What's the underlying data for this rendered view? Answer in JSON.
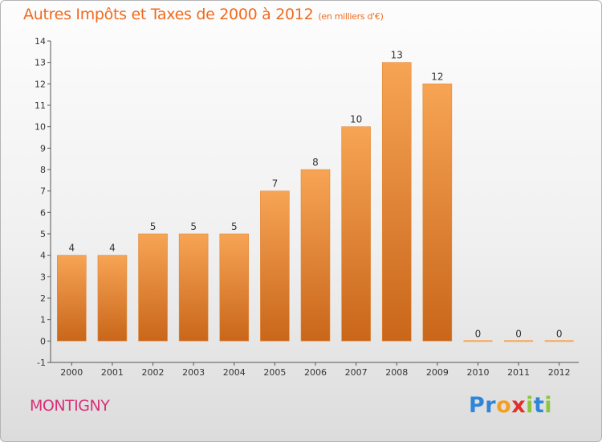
{
  "header": {
    "title": "Autres Impôts et Taxes de 2000 à 2012",
    "unit": "(en milliers d'€)"
  },
  "footer": {
    "commune": "MONTIGNY",
    "brand": "Proxiti",
    "brand_letters": [
      {
        "char": "P",
        "color": "#2f86d8"
      },
      {
        "char": "r",
        "color": "#2f86d8"
      },
      {
        "char": "o",
        "color": "#f3a020"
      },
      {
        "char": "x",
        "color": "#e0302a"
      },
      {
        "char": "i",
        "color": "#8cc63f"
      },
      {
        "char": "t",
        "color": "#2f86d8"
      },
      {
        "char": "i",
        "color": "#8cc63f"
      }
    ]
  },
  "colors": {
    "bar_top": "#f7a455",
    "bar_bottom": "#c9661a",
    "axis": "#555555",
    "grid": "#c8c8c8"
  },
  "chart_data": {
    "type": "bar",
    "title": "Autres Impôts et Taxes de 2000 à 2012",
    "subtitle": "(en milliers d'€)",
    "categories": [
      "2000",
      "2001",
      "2002",
      "2003",
      "2004",
      "2005",
      "2006",
      "2007",
      "2008",
      "2009",
      "2010",
      "2011",
      "2012"
    ],
    "values": [
      4,
      4,
      5,
      5,
      5,
      7,
      8,
      10,
      13,
      12,
      0,
      0,
      0
    ],
    "data_labels": [
      "4",
      "4",
      "5",
      "5",
      "5",
      "7",
      "8",
      "10",
      "13",
      "12",
      "0",
      "0",
      "0"
    ],
    "y_ticks": [
      "-1",
      "0",
      "1",
      "2",
      "3",
      "4",
      "5",
      "6",
      "7",
      "8",
      "9",
      "10",
      "11",
      "12",
      "13",
      "14"
    ],
    "ylim": [
      -1,
      14
    ],
    "grid": false,
    "legend": "none"
  }
}
